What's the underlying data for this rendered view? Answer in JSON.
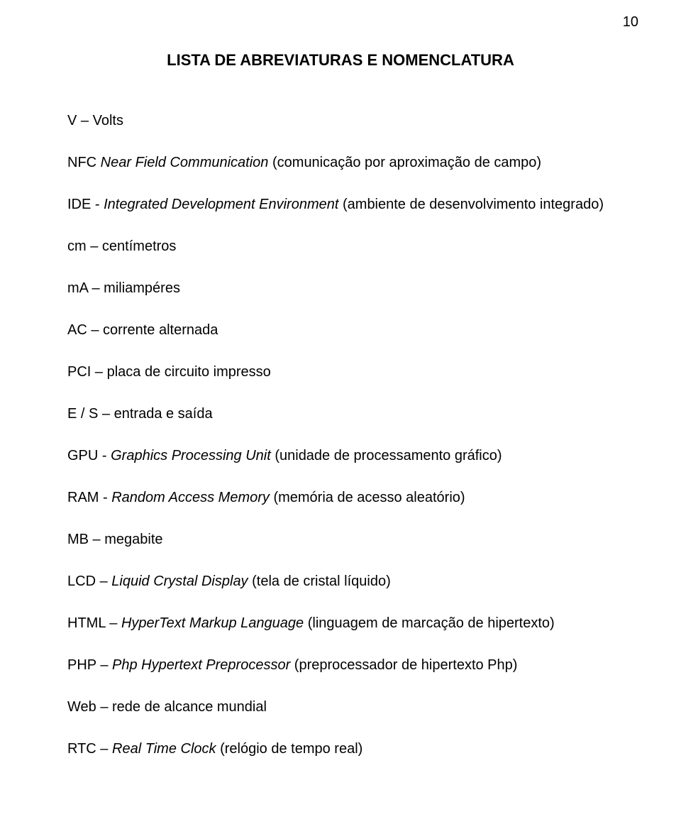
{
  "page_number": "10",
  "title": "LISTA DE ABREVIATURAS E NOMENCLATURA",
  "entries": [
    {
      "abbr": "V",
      "sep": " – ",
      "term": "Volts",
      "italic": false,
      "tail": ""
    },
    {
      "abbr": "NFC",
      "sep": " ",
      "term": "Near Field Communication",
      "italic": true,
      "tail": " (comunicação por aproximação de campo)"
    },
    {
      "abbr": "IDE",
      "sep": " - ",
      "term": "Integrated Development Environment",
      "italic": true,
      "tail": " (ambiente de desenvolvimento integrado)"
    },
    {
      "abbr": "cm",
      "sep": " – ",
      "term": "centímetros",
      "italic": false,
      "tail": ""
    },
    {
      "abbr": "mA",
      "sep": " – ",
      "term": "miliampéres",
      "italic": false,
      "tail": ""
    },
    {
      "abbr": "AC",
      "sep": " – ",
      "term": "corrente alternada",
      "italic": false,
      "tail": ""
    },
    {
      "abbr": "PCI",
      "sep": " – ",
      "term": "placa de circuito impresso",
      "italic": false,
      "tail": ""
    },
    {
      "abbr": "E / S",
      "sep": " – ",
      "term": "entrada e saída",
      "italic": false,
      "tail": ""
    },
    {
      "abbr": "GPU",
      "sep": " - ",
      "term": "Graphics Processing Unit",
      "italic": true,
      "tail": " (unidade de processamento gráfico)"
    },
    {
      "abbr": "RAM",
      "sep": " - ",
      "term": "Random Access Memory",
      "italic": true,
      "tail": " (memória de acesso aleatório)"
    },
    {
      "abbr": "MB",
      "sep": " – ",
      "term": "megabite",
      "italic": false,
      "tail": ""
    },
    {
      "abbr": "LCD",
      "sep": " – ",
      "term": "Liquid Crystal Display",
      "italic": true,
      "tail": " (tela de cristal líquido)"
    },
    {
      "abbr": "HTML",
      "sep": " – ",
      "term": "HyperText Markup Language",
      "italic": true,
      "tail": " (linguagem de marcação de hipertexto)"
    },
    {
      "abbr": "PHP",
      "sep": " – ",
      "term": "Php Hypertext Preprocessor",
      "italic": true,
      "tail": " (preprocessador de hipertexto Php)"
    },
    {
      "abbr": "Web",
      "sep": " – ",
      "term": "rede de alcance mundial",
      "italic": false,
      "tail": ""
    },
    {
      "abbr": "RTC",
      "sep": " – ",
      "term": "Real Time Clock",
      "italic": true,
      "tail": " (relógio de tempo real)"
    }
  ]
}
